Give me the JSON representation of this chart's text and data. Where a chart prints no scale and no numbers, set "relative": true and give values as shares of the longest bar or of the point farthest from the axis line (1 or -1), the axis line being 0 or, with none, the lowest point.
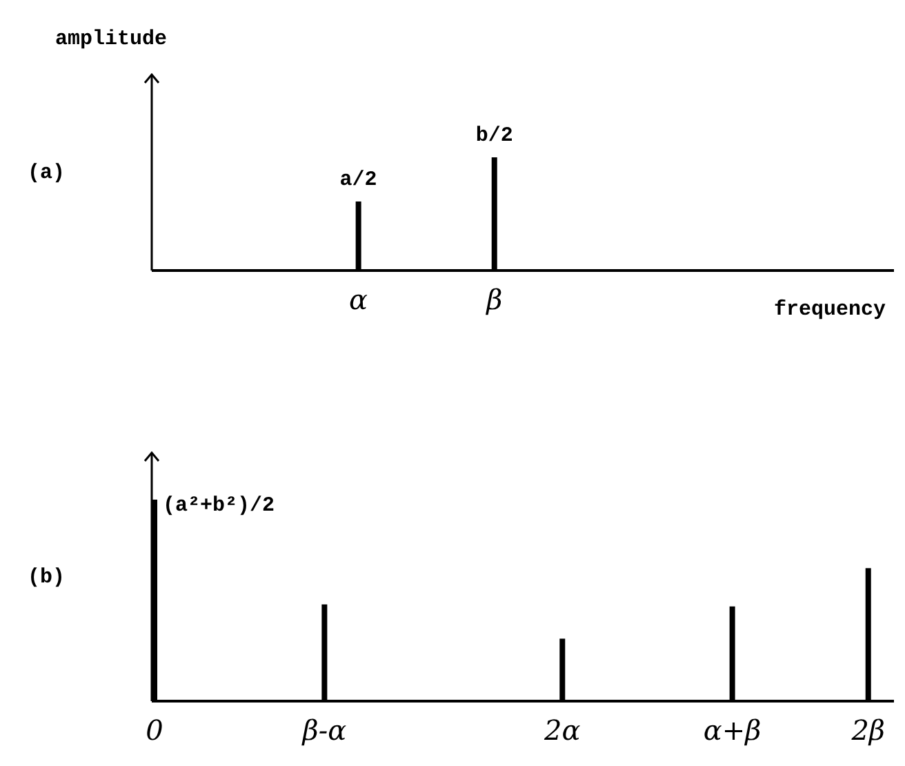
{
  "chart_data": [
    {
      "type": "bar",
      "title": "(a)",
      "xlabel": "frequency",
      "ylabel": "amplitude",
      "relative": true,
      "color": "#000000",
      "categories": [
        null,
        null,
        null,
        null,
        null,
        null,
        "α",
        null,
        null,
        null,
        "β",
        null,
        null,
        null,
        null,
        null,
        null,
        null,
        null,
        null,
        null,
        null,
        null
      ],
      "values": [
        null,
        null,
        null,
        null,
        null,
        null,
        0.61,
        null,
        null,
        null,
        1,
        null,
        null,
        null,
        null,
        null,
        null,
        null,
        null,
        null,
        null,
        null,
        null
      ],
      "annotations": [
        {
          "text": "a/2",
          "x": "α",
          "y": 0.61
        },
        {
          "text": "b/2",
          "x": "β",
          "y": 1
        }
      ]
    },
    {
      "type": "bar",
      "title": "(b)",
      "relative": true,
      "color": "#000000",
      "categories": [
        "0",
        null,
        null,
        null,
        null,
        "β-α",
        null,
        null,
        null,
        null,
        null,
        null,
        "2α",
        null,
        null,
        null,
        null,
        "α+β",
        null,
        null,
        null,
        "2β",
        null
      ],
      "values": [
        1,
        null,
        null,
        null,
        null,
        0.48,
        null,
        null,
        null,
        null,
        null,
        null,
        0.31,
        null,
        null,
        null,
        null,
        0.47,
        null,
        null,
        null,
        0.66,
        null
      ],
      "annotations": [
        {
          "text": "(a²+b²)/2",
          "x": "0",
          "y": 1
        }
      ]
    }
  ]
}
